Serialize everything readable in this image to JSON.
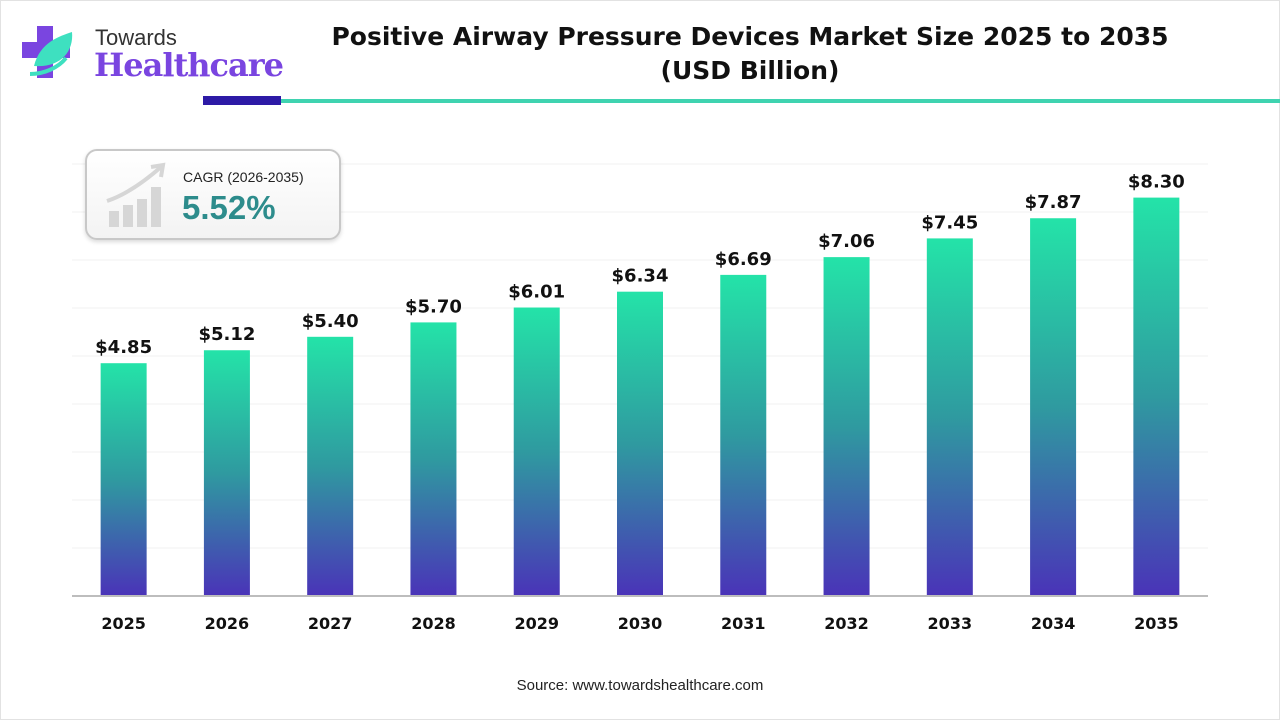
{
  "logo": {
    "line1": "Towards",
    "line2": "Healthcare"
  },
  "title_line1": "Positive Airway Pressure Devices Market Size 2025 to 2035",
  "title_line2": "(USD Billion)",
  "cagr": {
    "label": "CAGR (2026-2035)",
    "value": "5.52%",
    "icon": "growth-chart-icon"
  },
  "source": "Source: www.towardshealthcare.com",
  "colors": {
    "bar_top": "#24e3a8",
    "bar_mid": "#2f9aa0",
    "bar_bottom": "#4a33b8",
    "accent_dark": "#2d1aa6",
    "accent_teal": "#3fd3b0"
  },
  "chart_data": {
    "type": "bar",
    "title": "Positive Airway Pressure Devices Market Size 2025 to 2035 (USD Billion)",
    "categories": [
      "2025",
      "2026",
      "2027",
      "2028",
      "2029",
      "2030",
      "2031",
      "2032",
      "2033",
      "2034",
      "2035"
    ],
    "values": [
      4.85,
      5.12,
      5.4,
      5.7,
      6.01,
      6.34,
      6.69,
      7.06,
      7.45,
      7.87,
      8.3
    ],
    "data_labels": [
      "$4.85",
      "$5.12",
      "$5.40",
      "$5.70",
      "$6.01",
      "$6.34",
      "$6.69",
      "$7.06",
      "$7.45",
      "$7.87",
      "$8.30"
    ],
    "ylim": [
      0,
      9
    ],
    "grid": true,
    "legend": "none",
    "xlabel": "",
    "ylabel": ""
  }
}
